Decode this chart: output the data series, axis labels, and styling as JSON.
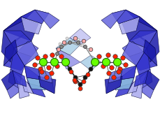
{
  "bg_color": "#ffffff",
  "blue_dark": "#1a1aaa",
  "blue_mid": "#3333cc",
  "blue_light": "#6666dd",
  "blue_very_light": "#aaaaee",
  "cyan_light": "#88bbdd",
  "green_atom": "#66ff00",
  "red_atom": "#ff2200",
  "black_atom": "#111111",
  "gray_atom": "#888888",
  "pink_atom": "#ffaaaa",
  "white_atom": "#dddddd",
  "fig_width": 2.3,
  "fig_height": 1.89,
  "dpi": 100
}
